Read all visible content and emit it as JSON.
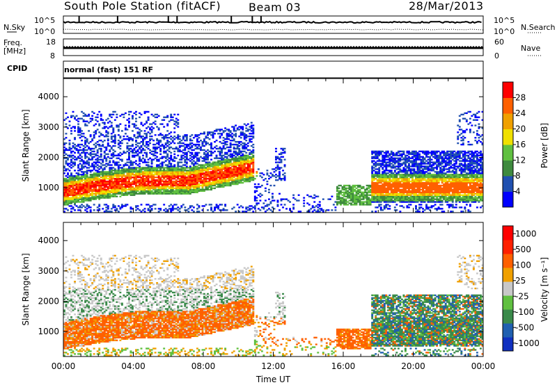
{
  "header": {
    "station": "South Pole Station (fitACF)",
    "beam": "Beam 03",
    "date": "28/Mar/2013"
  },
  "top_panels": {
    "nsky_label": "N.Sky",
    "nsky_ticks": [
      "10^5",
      "10^0"
    ],
    "nsearch_label": "N.Search",
    "nsearch_ticks": [
      "10^5",
      "10^0"
    ],
    "freq_label_1": "Freq.",
    "freq_label_2": "[MHz]",
    "freq_ticks": [
      "18",
      "8"
    ],
    "nave_label": "Nave",
    "nave_ticks": [
      "60",
      "0"
    ],
    "cpid_label": "CPID",
    "cpid_value": "normal (fast) 151 RF"
  },
  "chart_data": [
    {
      "type": "heatmap",
      "name": "power",
      "ylabel": "Slant Range [km]",
      "xlabel": "Time UT",
      "y_ticks": [
        "1000",
        "2000",
        "3000",
        "4000"
      ],
      "x_ticks": [
        "00:00",
        "04:00",
        "08:00",
        "12:00",
        "16:00",
        "20:00",
        "00:00"
      ],
      "ylim": [
        180,
        4600
      ],
      "xlim_hours": [
        0,
        24
      ],
      "colorbar_label": "Power [dB]",
      "colorbar_ticks": [
        "28",
        "24",
        "20",
        "16",
        "12",
        "8",
        "4"
      ],
      "colors": [
        "#0000ff",
        "#2050b0",
        "#3e8a3e",
        "#60c040",
        "#f0e000",
        "#f0a000",
        "#ff6000",
        "#ff0000"
      ]
    },
    {
      "type": "heatmap",
      "name": "velocity",
      "ylabel": "Slant Range [km]",
      "xlabel": "Time UT",
      "y_ticks": [
        "1000",
        "2000",
        "3000",
        "4000"
      ],
      "x_ticks": [
        "00:00",
        "04:00",
        "08:00",
        "12:00",
        "16:00",
        "20:00",
        "00:00"
      ],
      "ylim": [
        180,
        4600
      ],
      "xlim_hours": [
        0,
        24
      ],
      "colorbar_label": "Velocity [m s⁻¹]",
      "colorbar_ticks": [
        "1000",
        "500",
        "100",
        "25",
        "-25",
        "-100",
        "-500",
        "-1000"
      ],
      "colors": [
        "#1030c0",
        "#2060b0",
        "#3a8a4a",
        "#60c040",
        "#c8c8c8",
        "#f0a000",
        "#ff6000",
        "#ff2000",
        "#ff0000"
      ]
    }
  ]
}
